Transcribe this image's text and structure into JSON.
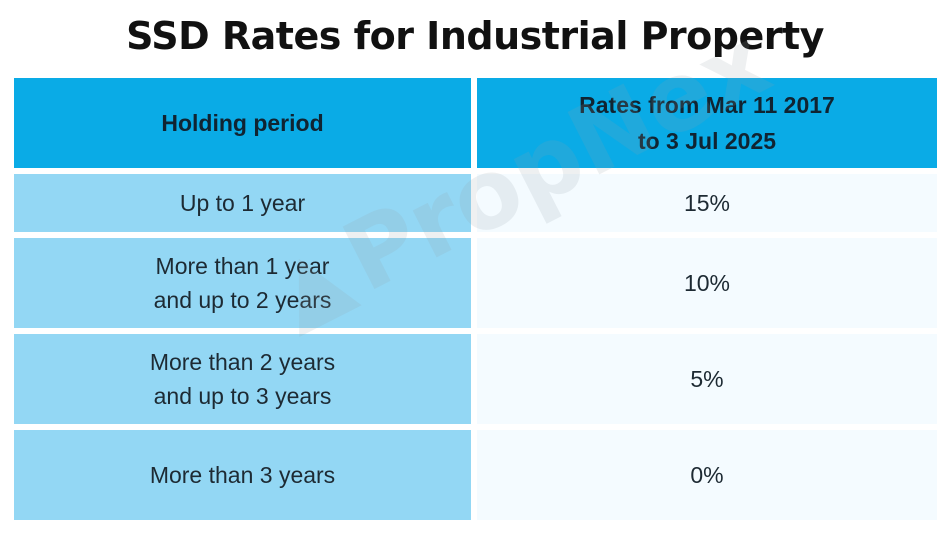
{
  "title": "SSD Rates for Industrial Property",
  "table": {
    "headers": {
      "holding_period": "Holding period",
      "rates_line1": "Rates from Mar 11 2017",
      "rates_line2": "to 3 Jul 2025"
    },
    "rows": [
      {
        "period_line1": "Up to 1 year",
        "period_line2": "",
        "rate": "15%"
      },
      {
        "period_line1": "More than 1 year",
        "period_line2": "and up to 2 years",
        "rate": "10%"
      },
      {
        "period_line1": "More than 2 years",
        "period_line2": "and up to 3 years",
        "rate": "5%"
      },
      {
        "period_line1": "More than 3 years",
        "period_line2": "",
        "rate": "0%"
      }
    ]
  },
  "watermark": {
    "text": "PropNex",
    "icon": "propnex-logo-icon"
  },
  "colors": {
    "header": "#0aabe6",
    "left_column": "#93d7f4",
    "right_column": "#f4fbff"
  }
}
